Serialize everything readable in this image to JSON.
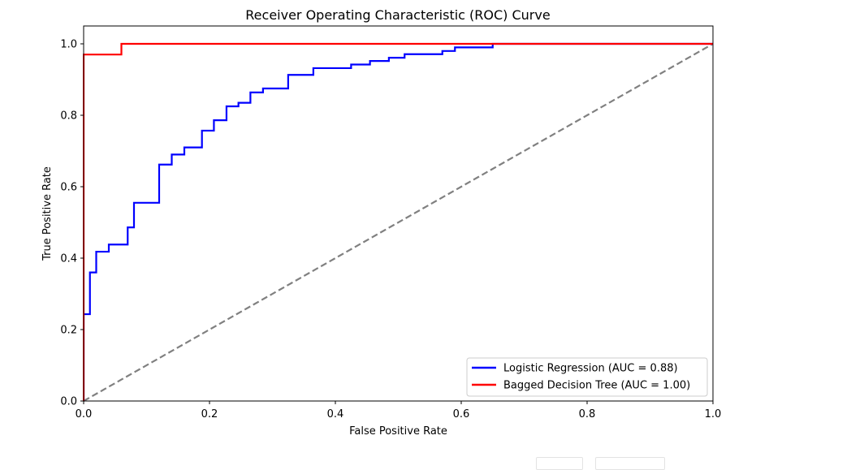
{
  "chart_data": {
    "type": "line",
    "title": "Receiver Operating Characteristic (ROC) Curve",
    "xlabel": "False Positive Rate",
    "ylabel": "True Positive Rate",
    "xlim": [
      0.0,
      1.0
    ],
    "ylim": [
      0.0,
      1.05
    ],
    "xticks": [
      0.0,
      0.2,
      0.4,
      0.6,
      0.8,
      1.0
    ],
    "xtick_labels": [
      "0.0",
      "0.2",
      "0.4",
      "0.6",
      "0.8",
      "1.0"
    ],
    "yticks": [
      0.0,
      0.2,
      0.4,
      0.6,
      0.8,
      1.0
    ],
    "ytick_labels": [
      "0.0",
      "0.2",
      "0.4",
      "0.6",
      "0.8",
      "1.0"
    ],
    "grid": false,
    "legend_position": "lower-right",
    "series": [
      {
        "name": "Logistic Regression (AUC = 0.88)",
        "color": "#0000ff",
        "style": "step",
        "x": [
          0.0,
          0.0,
          0.01,
          0.01,
          0.02,
          0.02,
          0.04,
          0.04,
          0.07,
          0.07,
          0.08,
          0.08,
          0.12,
          0.12,
          0.14,
          0.14,
          0.16,
          0.16,
          0.188,
          0.188,
          0.207,
          0.207,
          0.227,
          0.227,
          0.246,
          0.246,
          0.265,
          0.265,
          0.285,
          0.285,
          0.325,
          0.325,
          0.365,
          0.365,
          0.425,
          0.425,
          0.455,
          0.455,
          0.485,
          0.485,
          0.51,
          0.51,
          0.57,
          0.57,
          0.59,
          0.59,
          0.65,
          0.65,
          1.0
        ],
        "y": [
          0.0,
          0.243,
          0.243,
          0.36,
          0.36,
          0.418,
          0.418,
          0.438,
          0.438,
          0.486,
          0.486,
          0.555,
          0.555,
          0.662,
          0.662,
          0.69,
          0.69,
          0.71,
          0.71,
          0.757,
          0.757,
          0.786,
          0.786,
          0.825,
          0.825,
          0.835,
          0.835,
          0.864,
          0.864,
          0.875,
          0.875,
          0.913,
          0.913,
          0.932,
          0.932,
          0.942,
          0.942,
          0.952,
          0.952,
          0.961,
          0.961,
          0.971,
          0.971,
          0.98,
          0.98,
          0.99,
          0.99,
          1.0,
          1.0
        ]
      },
      {
        "name": "Bagged Decision Tree (AUC = 1.00)",
        "color": "#ff0000",
        "style": "step",
        "x": [
          0.0,
          0.0,
          0.06,
          0.06,
          1.0
        ],
        "y": [
          0.0,
          0.97,
          0.97,
          1.0,
          1.0
        ]
      },
      {
        "name": "",
        "color": "#808080",
        "style": "dashed",
        "x": [
          0.0,
          1.0
        ],
        "y": [
          0.0,
          1.0
        ]
      }
    ]
  },
  "corner_mark": "··"
}
